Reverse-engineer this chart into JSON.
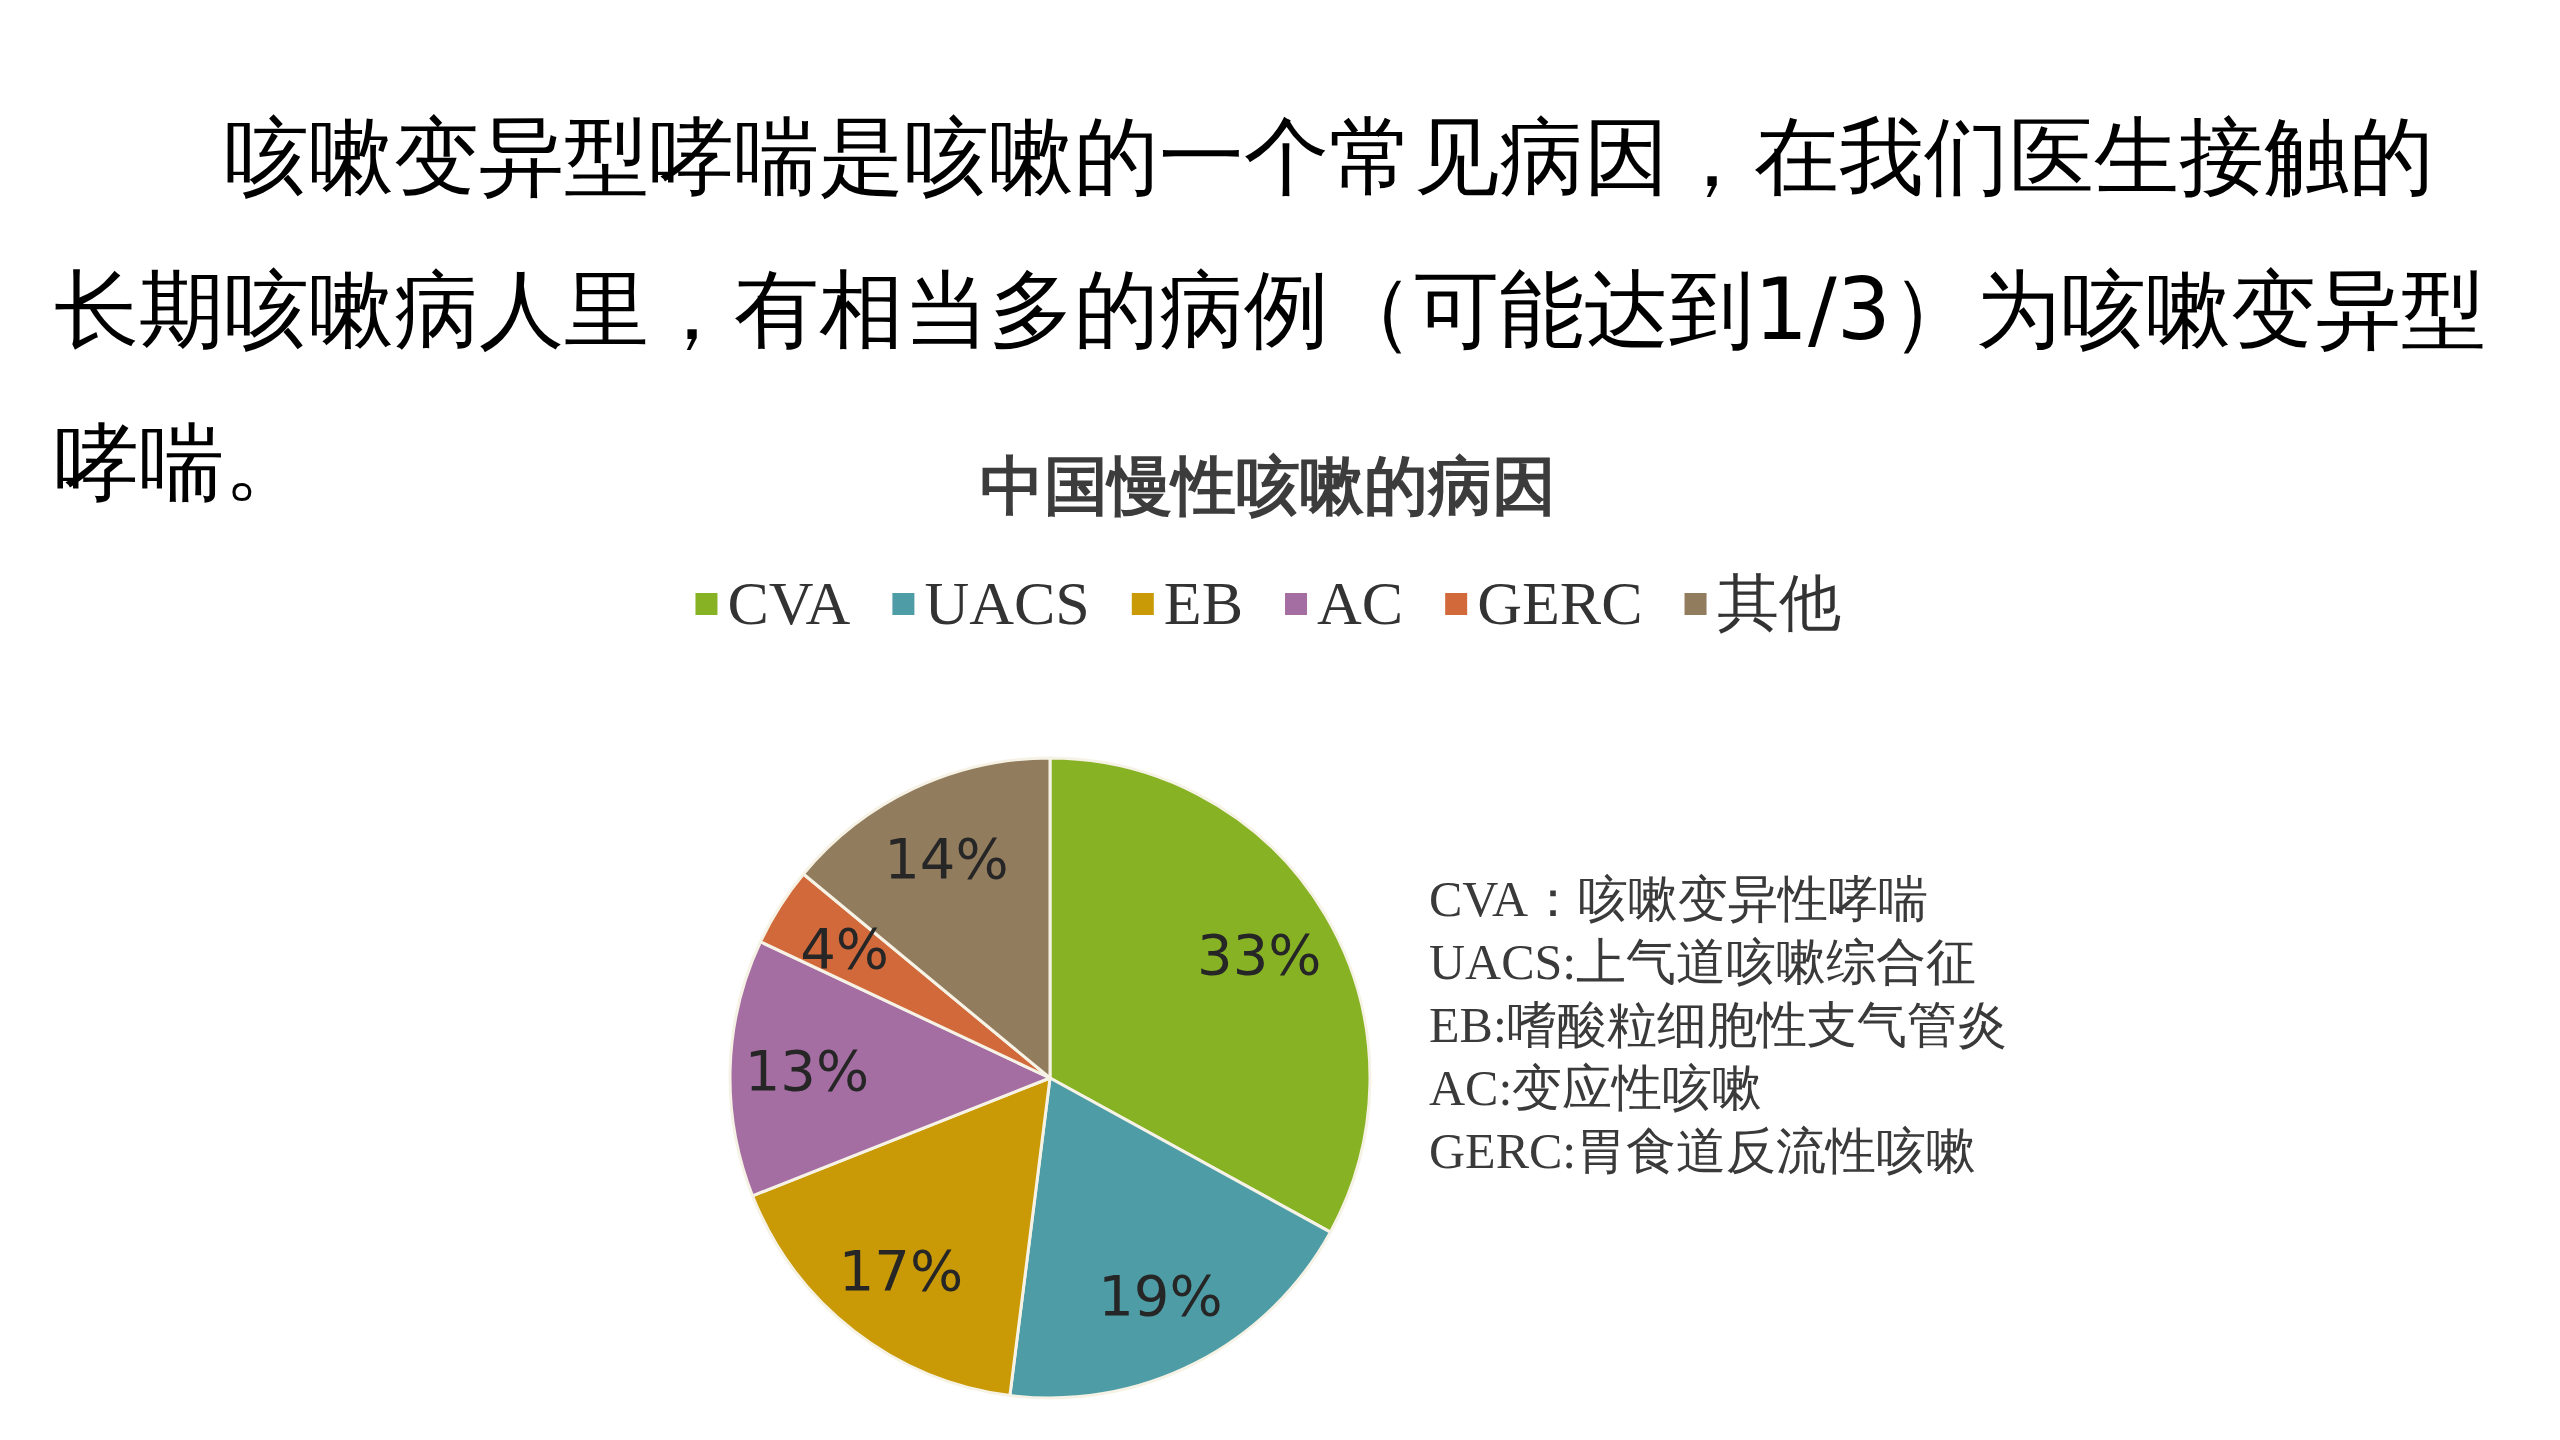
{
  "chart_data": {
    "type": "pie",
    "title": "中国慢性咳嗽的病因",
    "categories": [
      "CVA",
      "UACS",
      "EB",
      "AC",
      "GERC",
      "其他"
    ],
    "values": [
      33,
      19,
      17,
      13,
      4,
      14
    ],
    "colors": [
      "#86b224",
      "#4e9da6",
      "#c99a05",
      "#a46ea3",
      "#d1693b",
      "#927c5e"
    ],
    "value_labels": [
      "33%",
      "19%",
      "17%",
      "13%",
      "4%",
      "14%"
    ],
    "legend": "top",
    "annotations": [
      "咳嗽变异型哮喘是咳嗽的一个常见病因，在我们医生接触的长期咳嗽病人里，有相当多的病例（可能达到1/3）为咳嗽变异型哮喘。",
      "CVA：咳嗽变异性哮喘",
      "UACS:上气道咳嗽综合征",
      "EB:嗜酸粒细胞性支气管炎",
      "AC:变应性咳嗽",
      "GERC:胃食道反流性咳嗽"
    ]
  }
}
